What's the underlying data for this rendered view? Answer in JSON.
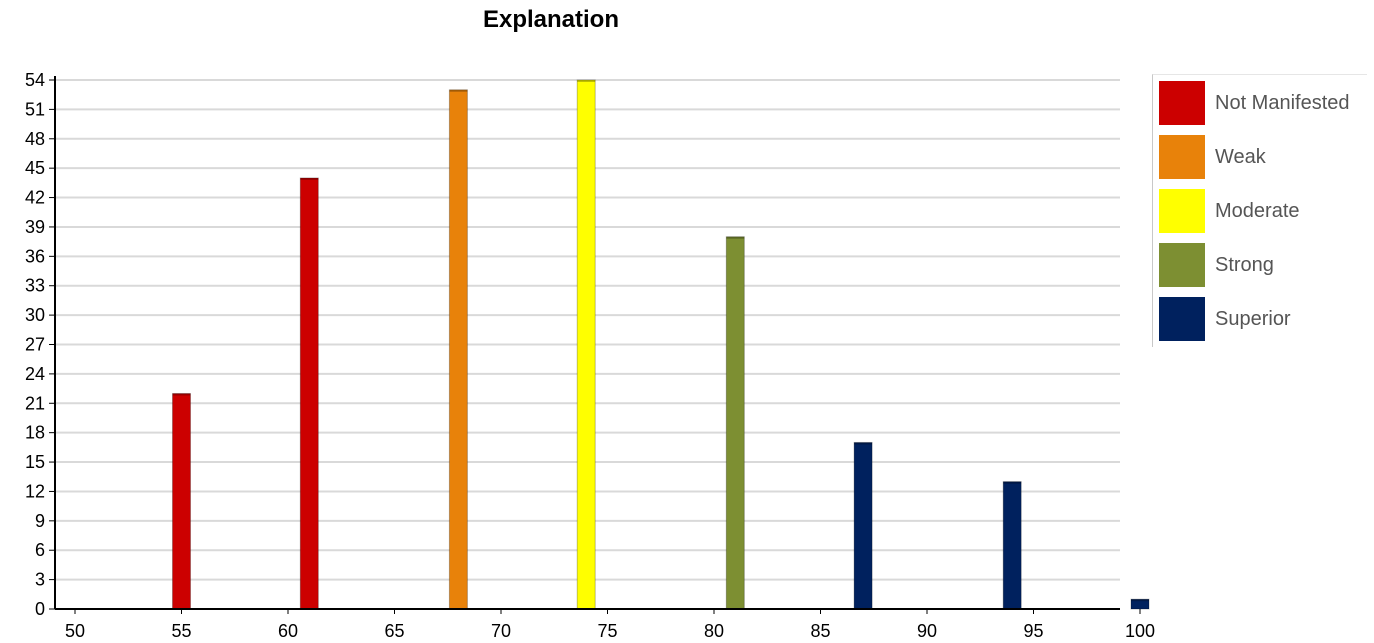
{
  "chart_data": {
    "type": "bar",
    "title": "Explanation",
    "xlabel": "",
    "ylabel": "",
    "xlim": [
      50,
      100
    ],
    "ylim": [
      0,
      54
    ],
    "x_ticks": [
      50,
      55,
      60,
      65,
      70,
      75,
      80,
      85,
      90,
      95,
      100
    ],
    "y_ticks": [
      0,
      3,
      6,
      9,
      12,
      15,
      18,
      21,
      24,
      27,
      30,
      33,
      36,
      39,
      42,
      45,
      48,
      51,
      54
    ],
    "grid": true,
    "legend_position": "right",
    "series": [
      {
        "name": "Not Manifested",
        "color": "#cc0000",
        "points": [
          {
            "x": 55,
            "y": 22
          },
          {
            "x": 61,
            "y": 44
          }
        ]
      },
      {
        "name": "Weak",
        "color": "#e8820a",
        "points": [
          {
            "x": 68,
            "y": 53
          }
        ]
      },
      {
        "name": "Moderate",
        "color": "#ffff00",
        "points": [
          {
            "x": 74,
            "y": 54
          }
        ]
      },
      {
        "name": "Strong",
        "color": "#7d8f32",
        "points": [
          {
            "x": 81,
            "y": 38
          }
        ]
      },
      {
        "name": "Superior",
        "color": "#00215e",
        "points": [
          {
            "x": 87,
            "y": 17
          },
          {
            "x": 94,
            "y": 13
          },
          {
            "x": 100,
            "y": 1
          }
        ]
      }
    ]
  }
}
